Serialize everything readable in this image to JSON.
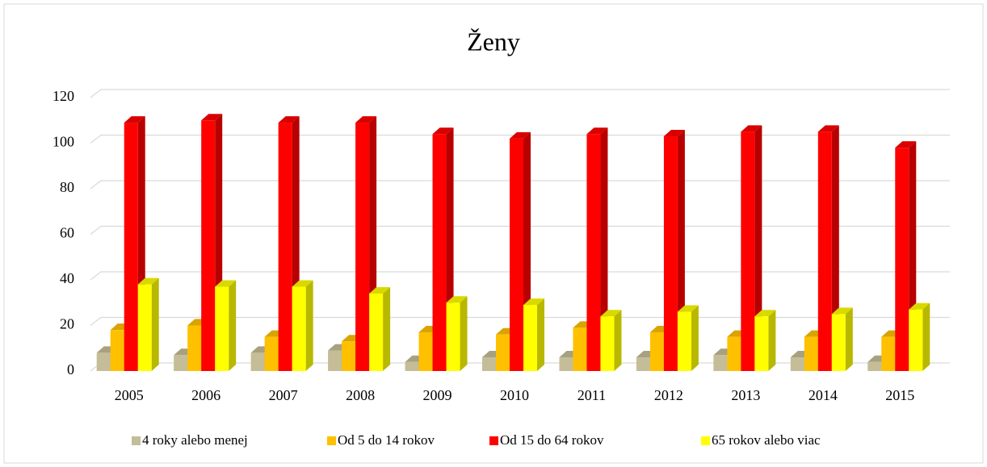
{
  "chart_data": {
    "type": "bar",
    "title": "Ženy",
    "categories": [
      "2005",
      "2006",
      "2007",
      "2008",
      "2009",
      "2010",
      "2011",
      "2012",
      "2013",
      "2014",
      "2015"
    ],
    "series": [
      {
        "name": "4 roky alebo menej",
        "color": "#c4bd97",
        "values": [
          8,
          7,
          8,
          9,
          4,
          6,
          6,
          6,
          7,
          6,
          4
        ]
      },
      {
        "name": "Od 5 do 14 rokov",
        "color": "#ffc000",
        "values": [
          18,
          20,
          15,
          13,
          17,
          16,
          19,
          17,
          15,
          15,
          15
        ]
      },
      {
        "name": "Od 15 do 64 rokov",
        "color": "#ff0000",
        "values": [
          109,
          110,
          109,
          109,
          104,
          102,
          104,
          103,
          105,
          105,
          98
        ]
      },
      {
        "name": "65 rokov alebo viac",
        "color": "#ffff00",
        "values": [
          38,
          37,
          37,
          34,
          30,
          29,
          24,
          26,
          24,
          25,
          27
        ]
      }
    ],
    "ylim": [
      0,
      120
    ],
    "yticks": [
      0,
      20,
      40,
      60,
      80,
      100,
      120
    ],
    "grid": true,
    "legend": "bottom"
  }
}
